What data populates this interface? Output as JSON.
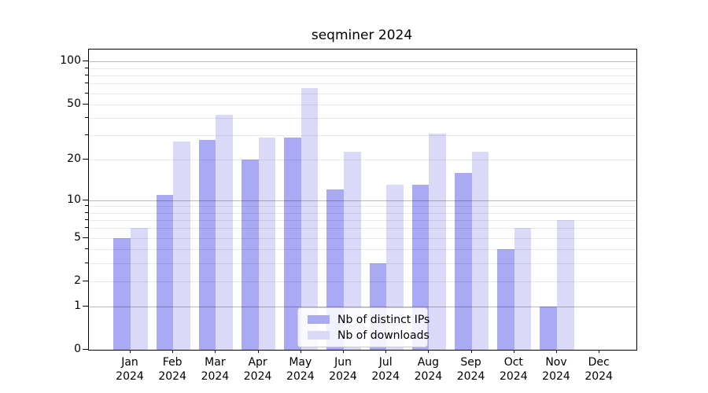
{
  "title": "seqminer 2024",
  "colors": {
    "ips": "#a9a9f4",
    "downloads": "#dadaf8",
    "grid_minor": "#e8e8e8",
    "grid_major": "#b5b5b5",
    "axis": "#000000"
  },
  "legend": [
    {
      "label": "Nb of distinct IPs",
      "series_key": "ips"
    },
    {
      "label": "Nb of downloads",
      "series_key": "downloads"
    }
  ],
  "chart_data": {
    "type": "bar",
    "title": "seqminer 2024",
    "categories": [
      "Jan",
      "Feb",
      "Mar",
      "Apr",
      "May",
      "Jun",
      "Jul",
      "Aug",
      "Sep",
      "Oct",
      "Nov",
      "Dec"
    ],
    "year_label": "2024",
    "series": [
      {
        "name": "Nb of distinct IPs",
        "key": "ips",
        "values": [
          5,
          11,
          28,
          20,
          29,
          12,
          3,
          13,
          16,
          4,
          1,
          0
        ]
      },
      {
        "name": "Nb of downloads",
        "key": "downloads",
        "values": [
          6,
          27,
          42,
          29,
          65,
          23,
          13,
          31,
          23,
          6,
          7,
          0
        ]
      }
    ],
    "xlabel": "",
    "ylabel": "",
    "yscale": "log1p",
    "ylim": [
      0,
      110
    ],
    "y_tick_labels": [
      0,
      1,
      2,
      5,
      10,
      20,
      50,
      100
    ],
    "y_gridlines_major": [
      1,
      10,
      100
    ],
    "y_gridlines_minor": [
      2,
      3,
      4,
      5,
      6,
      7,
      8,
      9,
      20,
      30,
      40,
      50,
      60,
      70,
      80,
      90
    ],
    "grid": true,
    "legend_position": "lower-center"
  }
}
